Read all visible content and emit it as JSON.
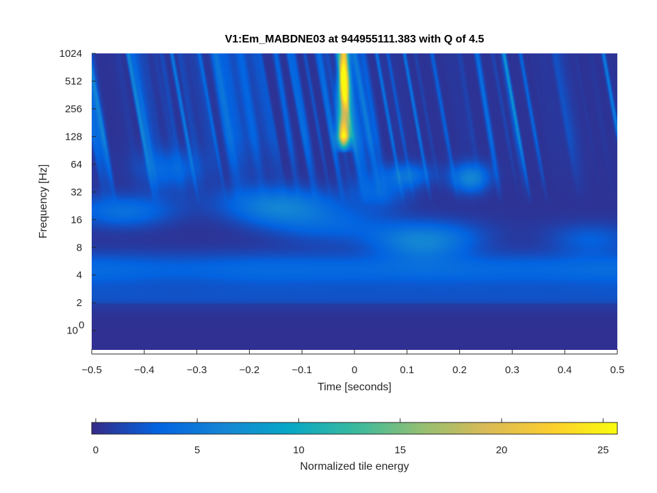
{
  "chart_data": {
    "type": "heatmap",
    "title": "V1:Em_MABDNE03 at 944955111.383 with Q of 4.5",
    "xlabel": "Time [seconds]",
    "ylabel": "Frequency [Hz]",
    "xlim": [
      -0.5,
      0.5
    ],
    "y_scale": "log2",
    "ylim_log2": [
      -0.7,
      10
    ],
    "x_ticks": [
      {
        "value": -0.5,
        "label": "−0.5"
      },
      {
        "value": -0.4,
        "label": "−0.4"
      },
      {
        "value": -0.3,
        "label": "−0.3"
      },
      {
        "value": -0.2,
        "label": "−0.2"
      },
      {
        "value": -0.1,
        "label": "−0.1"
      },
      {
        "value": 0,
        "label": "0"
      },
      {
        "value": 0.1,
        "label": "0.1"
      },
      {
        "value": 0.2,
        "label": "0.2"
      },
      {
        "value": 0.3,
        "label": "0.3"
      },
      {
        "value": 0.4,
        "label": "0.4"
      },
      {
        "value": 0.5,
        "label": "0.5"
      }
    ],
    "y_ticks": [
      {
        "value": 1,
        "label": "10",
        "sup": "0"
      },
      {
        "value": 2,
        "label": "2"
      },
      {
        "value": 4,
        "label": "4"
      },
      {
        "value": 8,
        "label": "8"
      },
      {
        "value": 16,
        "label": "16"
      },
      {
        "value": 32,
        "label": "32"
      },
      {
        "value": 64,
        "label": "64"
      },
      {
        "value": 128,
        "label": "128"
      },
      {
        "value": 256,
        "label": "256"
      },
      {
        "value": 512,
        "label": "512"
      },
      {
        "value": 1024,
        "label": "1024"
      }
    ],
    "colorbar": {
      "label": "Normalized tile energy",
      "range": [
        -0.2,
        25.7
      ],
      "ticks": [
        0,
        5,
        10,
        15,
        20,
        25
      ],
      "tick_labels": [
        "0",
        "5",
        "10",
        "15",
        "20",
        "25"
      ],
      "colormap": "parula",
      "stops": [
        "#352a87",
        "#0363e1",
        "#1485d4",
        "#06a7c6",
        "#38b99e",
        "#92bf73",
        "#d9ba56",
        "#fcce2e",
        "#f9fb0e"
      ]
    },
    "features": [
      {
        "name": "main glitch",
        "time": -0.02,
        "freq_range_hz": [
          100,
          1024
        ],
        "peak_energy": 25
      },
      {
        "name": "low-frequency band",
        "time_range": [
          -0.5,
          0.5
        ],
        "freq_range_hz": [
          3,
          8
        ],
        "energy": 4
      },
      {
        "name": "blob",
        "time": 0.13,
        "freq_hz": 10,
        "energy": 6
      },
      {
        "name": "blob",
        "time": 0.22,
        "freq_hz": 45,
        "energy": 6
      },
      {
        "name": "blob",
        "time": -0.15,
        "freq_hz": 22,
        "energy": 5
      },
      {
        "name": "blob",
        "time": -0.44,
        "freq_hz": 20,
        "energy": 4
      },
      {
        "name": "blob",
        "time": 0.1,
        "freq_hz": 50,
        "energy": 4
      }
    ]
  }
}
